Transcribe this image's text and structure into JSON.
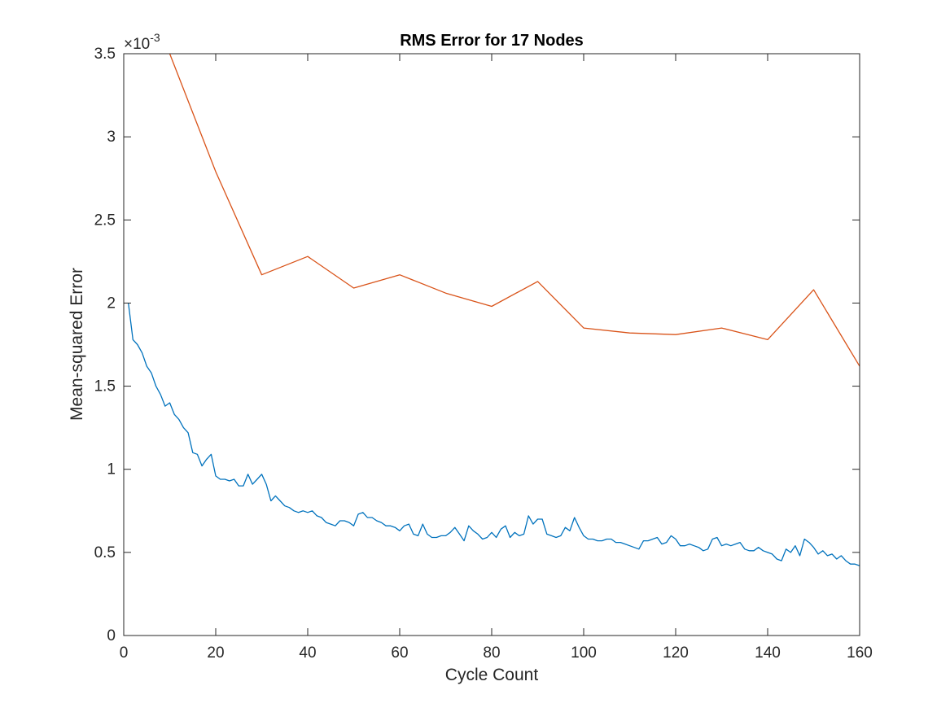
{
  "chart_data": {
    "type": "line",
    "title": "RMS Error for 17 Nodes",
    "xlabel": "Cycle Count",
    "ylabel": "Mean-squared Error",
    "y_exponent_base": "×10",
    "y_exponent_power": "-3",
    "xlim": [
      0,
      160
    ],
    "ylim": [
      0,
      3.5
    ],
    "xticks": [
      0,
      20,
      40,
      60,
      80,
      100,
      120,
      140,
      160
    ],
    "xtick_labels": [
      "0",
      "20",
      "40",
      "60",
      "80",
      "100",
      "120",
      "140",
      "160"
    ],
    "yticks": [
      0,
      0.5,
      1,
      1.5,
      2,
      2.5,
      3,
      3.5
    ],
    "ytick_labels": [
      "0",
      "0.5",
      "1",
      "1.5",
      "2",
      "2.5",
      "3",
      "3.5"
    ],
    "grid": false,
    "series": [
      {
        "color": "#0072BD",
        "x": [
          1,
          2,
          3,
          4,
          5,
          6,
          7,
          8,
          9,
          10,
          11,
          12,
          13,
          14,
          15,
          16,
          17,
          18,
          19,
          20,
          21,
          22,
          23,
          24,
          25,
          26,
          27,
          28,
          29,
          30,
          31,
          32,
          33,
          34,
          35,
          36,
          37,
          38,
          39,
          40,
          41,
          42,
          43,
          44,
          45,
          46,
          47,
          48,
          49,
          50,
          51,
          52,
          53,
          54,
          55,
          56,
          57,
          58,
          59,
          60,
          61,
          62,
          63,
          64,
          65,
          66,
          67,
          68,
          69,
          70,
          71,
          72,
          73,
          74,
          75,
          76,
          77,
          78,
          79,
          80,
          81,
          82,
          83,
          84,
          85,
          86,
          87,
          88,
          89,
          90,
          91,
          92,
          93,
          94,
          95,
          96,
          97,
          98,
          99,
          100,
          101,
          102,
          103,
          104,
          105,
          106,
          107,
          108,
          109,
          110,
          111,
          112,
          113,
          114,
          115,
          116,
          117,
          118,
          119,
          120,
          121,
          122,
          123,
          124,
          125,
          126,
          127,
          128,
          129,
          130,
          131,
          132,
          133,
          134,
          135,
          136,
          137,
          138,
          139,
          140,
          141,
          142,
          143,
          144,
          145,
          146,
          147,
          148,
          149,
          150,
          151,
          152,
          153,
          154,
          155,
          156,
          157,
          158,
          159,
          160
        ],
        "y": [
          2.0,
          1.78,
          1.75,
          1.7,
          1.62,
          1.58,
          1.5,
          1.45,
          1.38,
          1.4,
          1.33,
          1.3,
          1.25,
          1.22,
          1.1,
          1.09,
          1.02,
          1.06,
          1.09,
          0.96,
          0.94,
          0.94,
          0.93,
          0.94,
          0.9,
          0.9,
          0.97,
          0.91,
          0.94,
          0.97,
          0.91,
          0.81,
          0.84,
          0.81,
          0.78,
          0.77,
          0.75,
          0.74,
          0.75,
          0.74,
          0.75,
          0.72,
          0.71,
          0.68,
          0.67,
          0.66,
          0.69,
          0.69,
          0.68,
          0.66,
          0.73,
          0.74,
          0.71,
          0.71,
          0.69,
          0.68,
          0.66,
          0.66,
          0.65,
          0.63,
          0.66,
          0.67,
          0.61,
          0.6,
          0.67,
          0.61,
          0.59,
          0.59,
          0.6,
          0.6,
          0.62,
          0.65,
          0.61,
          0.57,
          0.66,
          0.63,
          0.61,
          0.58,
          0.59,
          0.62,
          0.59,
          0.64,
          0.66,
          0.59,
          0.62,
          0.6,
          0.61,
          0.72,
          0.67,
          0.7,
          0.7,
          0.61,
          0.6,
          0.59,
          0.6,
          0.65,
          0.63,
          0.71,
          0.65,
          0.6,
          0.58,
          0.58,
          0.57,
          0.57,
          0.58,
          0.58,
          0.56,
          0.56,
          0.55,
          0.54,
          0.53,
          0.52,
          0.57,
          0.57,
          0.58,
          0.59,
          0.55,
          0.56,
          0.6,
          0.58,
          0.54,
          0.54,
          0.55,
          0.54,
          0.53,
          0.51,
          0.52,
          0.58,
          0.59,
          0.54,
          0.55,
          0.54,
          0.55,
          0.56,
          0.52,
          0.51,
          0.51,
          0.53,
          0.51,
          0.5,
          0.49,
          0.46,
          0.45,
          0.52,
          0.5,
          0.54,
          0.48,
          0.58,
          0.56,
          0.53,
          0.49,
          0.51,
          0.48,
          0.49,
          0.46,
          0.48,
          0.45,
          0.43,
          0.43,
          0.42
        ]
      },
      {
        "color": "#D95319",
        "x": [
          10,
          20,
          30,
          40,
          50,
          60,
          70,
          80,
          90,
          100,
          110,
          120,
          130,
          140,
          150,
          160
        ],
        "y": [
          3.5,
          2.79,
          2.17,
          2.28,
          2.09,
          2.17,
          2.06,
          1.98,
          2.13,
          1.85,
          1.82,
          1.81,
          1.85,
          1.78,
          2.08,
          1.62
        ]
      }
    ]
  }
}
